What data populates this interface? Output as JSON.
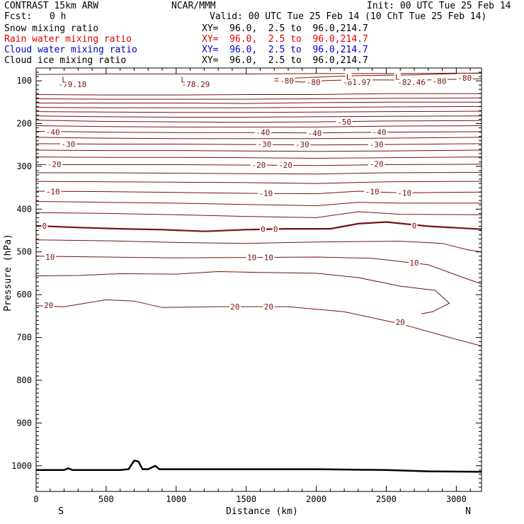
{
  "header": {
    "title": "CONTRAST 15km ARW",
    "center": "NCAR/MMM",
    "init": "Init: 00 UTC Tue 25 Feb 14",
    "fcst_label": "Fcst:",
    "fcst_value": "0 h",
    "valid": "Valid: 00 UTC Tue 25 Feb 14 (10 ChT Tue 25 Feb 14)"
  },
  "fields": [
    {
      "name": "Snow mixing ratio",
      "xy": "XY=  96.0,  2.5 to  96.0,214.7",
      "color": "#000000"
    },
    {
      "name": "Rain water mixing ratio",
      "xy": "XY=  96.0,  2.5 to  96.0,214.7",
      "color": "#e00000"
    },
    {
      "name": "Cloud water mixing ratio",
      "xy": "XY=  96.0,  2.5 to  96.0,214.7",
      "color": "#0000cc"
    },
    {
      "name": "Cloud ice mixing ratio",
      "xy": "XY=  96.0,  2.5 to  96.0,214.7",
      "color": "#000000"
    }
  ],
  "chart_data": {
    "type": "line",
    "xlabel": "Distance (km)",
    "ylabel": "Pressure (hPa)",
    "xlim": [
      0,
      3180
    ],
    "ylim": [
      1060,
      70
    ],
    "xticks": [
      0,
      500,
      1000,
      1500,
      2000,
      2500,
      3000
    ],
    "yticks": [
      100,
      200,
      300,
      400,
      500,
      600,
      700,
      800,
      900,
      1000
    ],
    "direction_left": "S",
    "direction_right": "N",
    "contour_color": "#7a1010",
    "terrain_color": "#000000",
    "isotherms": [
      {
        "label": "-80",
        "points": [
          [
            1700,
            95
          ],
          [
            1900,
            93
          ],
          [
            2100,
            90
          ],
          [
            2300,
            88
          ],
          [
            2500,
            87
          ],
          [
            2700,
            86
          ],
          [
            2900,
            84
          ],
          [
            3180,
            82
          ]
        ]
      },
      {
        "label": "-80",
        "points": [
          [
            1700,
            100
          ],
          [
            1900,
            103
          ],
          [
            2100,
            99
          ],
          [
            2300,
            98
          ],
          [
            2500,
            98
          ],
          [
            2700,
            99
          ],
          [
            2900,
            97
          ],
          [
            3180,
            95
          ]
        ]
      },
      {
        "label": "",
        "points": [
          [
            0,
            85
          ],
          [
            500,
            84
          ],
          [
            1000,
            84
          ],
          [
            1500,
            84
          ],
          [
            2000,
            83
          ],
          [
            2500,
            83
          ],
          [
            3180,
            82
          ]
        ]
      },
      {
        "label": "",
        "points": [
          [
            0,
            132
          ],
          [
            500,
            133
          ],
          [
            1000,
            133
          ],
          [
            1500,
            132
          ],
          [
            2000,
            132
          ],
          [
            2500,
            130
          ],
          [
            3180,
            130
          ]
        ]
      },
      {
        "label": "",
        "points": [
          [
            0,
            142
          ],
          [
            500,
            143
          ],
          [
            1000,
            143
          ],
          [
            1500,
            143
          ],
          [
            2000,
            142
          ],
          [
            2500,
            141
          ],
          [
            3180,
            140
          ]
        ]
      },
      {
        "label": "",
        "points": [
          [
            0,
            152
          ],
          [
            500,
            152
          ],
          [
            1000,
            152
          ],
          [
            1500,
            153
          ],
          [
            2000,
            151
          ],
          [
            2500,
            150
          ],
          [
            3180,
            150
          ]
        ]
      },
      {
        "label": "",
        "points": [
          [
            0,
            162
          ],
          [
            500,
            163
          ],
          [
            1000,
            163
          ],
          [
            1500,
            163
          ],
          [
            2000,
            162
          ],
          [
            2500,
            161
          ],
          [
            3180,
            160
          ]
        ]
      },
      {
        "label": "",
        "points": [
          [
            0,
            172
          ],
          [
            500,
            173
          ],
          [
            1000,
            174
          ],
          [
            1500,
            174
          ],
          [
            2000,
            173
          ],
          [
            2500,
            172
          ],
          [
            3180,
            171
          ]
        ]
      },
      {
        "label": "",
        "points": [
          [
            0,
            182
          ],
          [
            500,
            184
          ],
          [
            1000,
            185
          ],
          [
            1500,
            185
          ],
          [
            2000,
            184
          ],
          [
            2500,
            183
          ],
          [
            3180,
            182
          ]
        ]
      },
      {
        "label": "-50",
        "points": [
          [
            0,
            192
          ],
          [
            500,
            195
          ],
          [
            1000,
            196
          ],
          [
            1500,
            197
          ],
          [
            2000,
            196
          ],
          [
            2500,
            194
          ],
          [
            3180,
            193
          ]
        ]
      },
      {
        "label": "",
        "points": [
          [
            0,
            205
          ],
          [
            500,
            207
          ],
          [
            1000,
            208
          ],
          [
            1500,
            208
          ],
          [
            2000,
            208
          ],
          [
            2500,
            206
          ],
          [
            3180,
            205
          ]
        ]
      },
      {
        "label": "-40",
        "points": [
          [
            0,
            218
          ],
          [
            500,
            220
          ],
          [
            1000,
            221
          ],
          [
            1500,
            221
          ],
          [
            2000,
            222
          ],
          [
            2500,
            220
          ],
          [
            3180,
            219
          ]
        ]
      },
      {
        "label": "",
        "points": [
          [
            0,
            232
          ],
          [
            500,
            234
          ],
          [
            1000,
            235
          ],
          [
            1500,
            235
          ],
          [
            2000,
            235
          ],
          [
            2500,
            234
          ],
          [
            3180,
            232
          ]
        ]
      },
      {
        "label": "-30",
        "points": [
          [
            0,
            247
          ],
          [
            500,
            248
          ],
          [
            1000,
            248
          ],
          [
            1500,
            249
          ],
          [
            2000,
            250
          ],
          [
            2500,
            249
          ],
          [
            3180,
            247
          ]
        ]
      },
      {
        "label": "",
        "points": [
          [
            0,
            262
          ],
          [
            500,
            263
          ],
          [
            1000,
            263
          ],
          [
            1500,
            264
          ],
          [
            2000,
            265
          ],
          [
            2500,
            264
          ],
          [
            3180,
            262
          ]
        ]
      },
      {
        "label": "",
        "points": [
          [
            0,
            278
          ],
          [
            500,
            279
          ],
          [
            1000,
            279
          ],
          [
            1500,
            280
          ],
          [
            2000,
            281
          ],
          [
            2500,
            280
          ],
          [
            3180,
            278
          ]
        ]
      },
      {
        "label": "-20",
        "points": [
          [
            0,
            296
          ],
          [
            500,
            296
          ],
          [
            1000,
            296
          ],
          [
            1500,
            297
          ],
          [
            2000,
            298
          ],
          [
            2500,
            296
          ],
          [
            3180,
            295
          ]
        ]
      },
      {
        "label": "",
        "points": [
          [
            0,
            315
          ],
          [
            500,
            315
          ],
          [
            1000,
            316
          ],
          [
            1500,
            317
          ],
          [
            2000,
            318
          ],
          [
            2500,
            315
          ],
          [
            3180,
            314
          ]
        ]
      },
      {
        "label": "",
        "points": [
          [
            0,
            335
          ],
          [
            500,
            336
          ],
          [
            1000,
            337
          ],
          [
            1500,
            338
          ],
          [
            2000,
            340
          ],
          [
            2500,
            336
          ],
          [
            3180,
            335
          ]
        ]
      },
      {
        "label": "-10",
        "points": [
          [
            0,
            358
          ],
          [
            500,
            359
          ],
          [
            1000,
            361
          ],
          [
            1500,
            363
          ],
          [
            2000,
            364
          ],
          [
            2300,
            358
          ],
          [
            2600,
            362
          ],
          [
            3180,
            360
          ]
        ]
      },
      {
        "label": "",
        "points": [
          [
            0,
            382
          ],
          [
            500,
            384
          ],
          [
            1000,
            386
          ],
          [
            1500,
            389
          ],
          [
            2000,
            392
          ],
          [
            2300,
            384
          ],
          [
            2600,
            386
          ],
          [
            3180,
            386
          ]
        ]
      },
      {
        "label": "",
        "points": [
          [
            0,
            408
          ],
          [
            500,
            410
          ],
          [
            1000,
            413
          ],
          [
            1500,
            417
          ],
          [
            2000,
            420
          ],
          [
            2300,
            406
          ],
          [
            2600,
            412
          ],
          [
            3180,
            413
          ]
        ]
      },
      {
        "label": "0",
        "heavy": true,
        "points": [
          [
            0,
            439
          ],
          [
            300,
            443
          ],
          [
            600,
            446
          ],
          [
            900,
            448
          ],
          [
            1200,
            452
          ],
          [
            1500,
            448
          ],
          [
            1800,
            446
          ],
          [
            2100,
            446
          ],
          [
            2300,
            434
          ],
          [
            2500,
            430
          ],
          [
            2800,
            440
          ],
          [
            3180,
            447
          ]
        ]
      },
      {
        "label": "",
        "points": [
          [
            0,
            472
          ],
          [
            500,
            474
          ],
          [
            1000,
            478
          ],
          [
            1500,
            480
          ],
          [
            2000,
            477
          ],
          [
            2600,
            475
          ],
          [
            2900,
            480
          ],
          [
            3080,
            495
          ],
          [
            3180,
            500
          ]
        ]
      },
      {
        "label": "10",
        "points": [
          [
            0,
            510
          ],
          [
            500,
            512
          ],
          [
            1000,
            514
          ],
          [
            1500,
            513
          ],
          [
            2000,
            512
          ],
          [
            2400,
            515
          ],
          [
            2800,
            530
          ],
          [
            3050,
            560
          ],
          [
            3180,
            575
          ]
        ]
      },
      {
        "label": "",
        "points": [
          [
            0,
            556
          ],
          [
            300,
            555
          ],
          [
            600,
            551
          ],
          [
            1000,
            552
          ],
          [
            1300,
            546
          ],
          [
            1600,
            548
          ],
          [
            2000,
            550
          ],
          [
            2300,
            560
          ],
          [
            2600,
            580
          ],
          [
            2850,
            590
          ],
          [
            2950,
            620
          ],
          [
            2830,
            640
          ],
          [
            2750,
            645
          ]
        ]
      },
      {
        "label": "20",
        "points": [
          [
            0,
            626
          ],
          [
            200,
            628
          ],
          [
            500,
            612
          ],
          [
            700,
            615
          ],
          [
            900,
            630
          ],
          [
            1300,
            628
          ],
          [
            1800,
            628
          ],
          [
            2200,
            640
          ],
          [
            2600,
            668
          ],
          [
            2950,
            700
          ],
          [
            3180,
            720
          ]
        ]
      }
    ],
    "labels": [
      {
        "text": "-80",
        "x": 1790,
        "p": 100
      },
      {
        "text": "-80",
        "x": 1980,
        "p": 103
      },
      {
        "text": "-81.97",
        "x": 2290,
        "p": 103
      },
      {
        "text": "-82.46",
        "x": 2680,
        "p": 103
      },
      {
        "text": "-80",
        "x": 2880,
        "p": 101
      },
      {
        "text": "-80",
        "x": 3060,
        "p": 93
      },
      {
        "text": "-79.18",
        "x": 260,
        "p": 108
      },
      {
        "text": "-78.29",
        "x": 1140,
        "p": 108
      },
      {
        "text": "L",
        "x": 200,
        "p": 97
      },
      {
        "text": "L",
        "x": 1050,
        "p": 97
      },
      {
        "text": "L",
        "x": 2230,
        "p": 91
      },
      {
        "text": "L",
        "x": 2580,
        "p": 91
      },
      {
        "text": "-50",
        "x": 2200,
        "p": 196
      },
      {
        "text": "-40",
        "x": 120,
        "p": 220
      },
      {
        "text": "-40",
        "x": 1620,
        "p": 221
      },
      {
        "text": "-40",
        "x": 1990,
        "p": 222
      },
      {
        "text": "-40",
        "x": 2450,
        "p": 220
      },
      {
        "text": "-30",
        "x": 230,
        "p": 248
      },
      {
        "text": "-30",
        "x": 1630,
        "p": 248
      },
      {
        "text": "-30",
        "x": 1900,
        "p": 249
      },
      {
        "text": "-30",
        "x": 2430,
        "p": 249
      },
      {
        "text": "-20",
        "x": 130,
        "p": 295
      },
      {
        "text": "-20",
        "x": 1590,
        "p": 297
      },
      {
        "text": "-20",
        "x": 1780,
        "p": 297
      },
      {
        "text": "-20",
        "x": 2430,
        "p": 294
      },
      {
        "text": "-10",
        "x": 120,
        "p": 359
      },
      {
        "text": "-10",
        "x": 1640,
        "p": 363
      },
      {
        "text": "-10",
        "x": 2400,
        "p": 359
      },
      {
        "text": "-10",
        "x": 2630,
        "p": 362
      },
      {
        "text": "0",
        "x": 60,
        "p": 439
      },
      {
        "text": "0",
        "x": 1620,
        "p": 447
      },
      {
        "text": "0",
        "x": 1710,
        "p": 447
      },
      {
        "text": "0",
        "x": 2700,
        "p": 438
      },
      {
        "text": "10",
        "x": 100,
        "p": 512
      },
      {
        "text": "10",
        "x": 1540,
        "p": 513
      },
      {
        "text": "10",
        "x": 1660,
        "p": 513
      },
      {
        "text": "10",
        "x": 2700,
        "p": 525
      },
      {
        "text": "20",
        "x": 90,
        "p": 625
      },
      {
        "text": "20",
        "x": 1420,
        "p": 628
      },
      {
        "text": "20",
        "x": 1660,
        "p": 628
      },
      {
        "text": "20",
        "x": 2600,
        "p": 664
      }
    ],
    "terrain": [
      [
        0,
        1010
      ],
      [
        200,
        1010
      ],
      [
        230,
        1006
      ],
      [
        260,
        1010
      ],
      [
        600,
        1010
      ],
      [
        660,
        1008
      ],
      [
        700,
        988
      ],
      [
        730,
        990
      ],
      [
        760,
        1008
      ],
      [
        800,
        1008
      ],
      [
        850,
        1000
      ],
      [
        880,
        1008
      ],
      [
        1500,
        1008
      ],
      [
        2000,
        1008
      ],
      [
        2500,
        1010
      ],
      [
        2800,
        1013
      ],
      [
        3180,
        1014
      ]
    ]
  }
}
